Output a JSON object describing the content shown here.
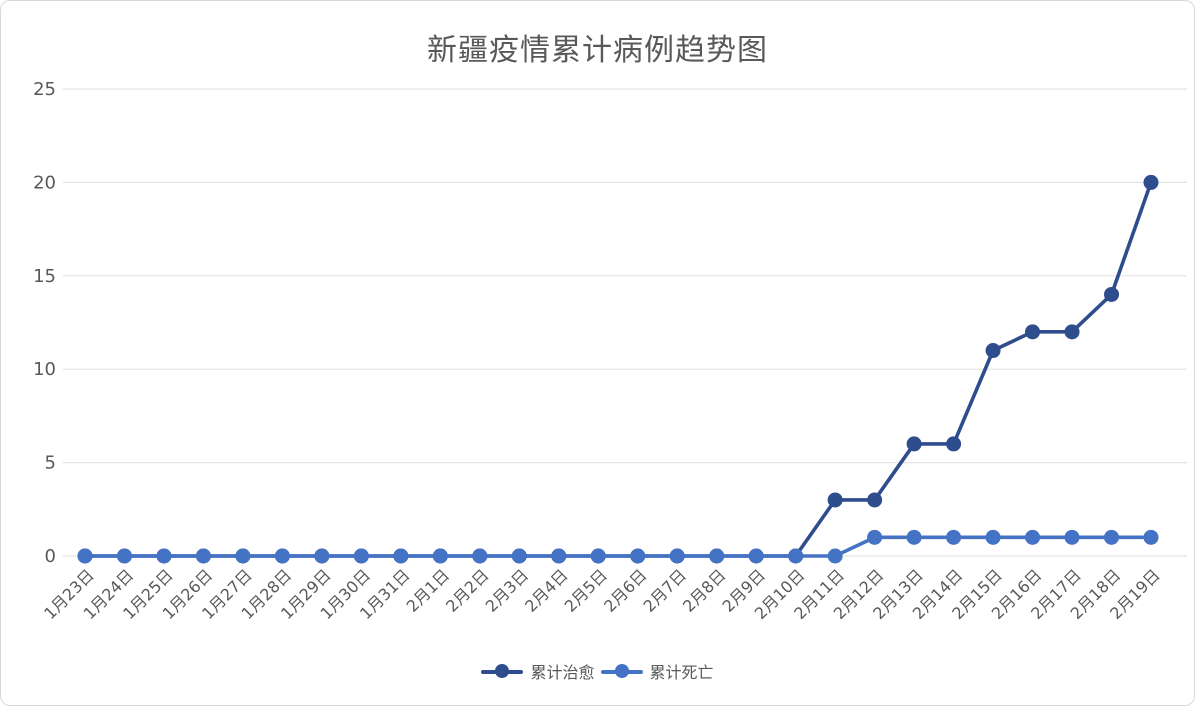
{
  "chart_data": {
    "type": "line",
    "title": "新疆疫情累计病例趋势图",
    "xlabel": "",
    "ylabel": "",
    "categories": [
      "1月23日",
      "1月24日",
      "1月25日",
      "1月26日",
      "1月27日",
      "1月28日",
      "1月29日",
      "1月30日",
      "1月31日",
      "2月1日",
      "2月2日",
      "2月3日",
      "2月4日",
      "2月5日",
      "2月6日",
      "2月7日",
      "2月8日",
      "2月9日",
      "2月10日",
      "2月11日",
      "2月12日",
      "2月13日",
      "2月14日",
      "2月15日",
      "2月16日",
      "2月17日",
      "2月18日",
      "2月19日"
    ],
    "series": [
      {
        "name": "累计治愈",
        "color": "#2E4D8C",
        "values": [
          0,
          0,
          0,
          0,
          0,
          0,
          0,
          0,
          0,
          0,
          0,
          0,
          0,
          0,
          0,
          0,
          0,
          0,
          0,
          3,
          3,
          6,
          6,
          11,
          12,
          12,
          14,
          20
        ]
      },
      {
        "name": "累计死亡",
        "color": "#4472C4",
        "values": [
          0,
          0,
          0,
          0,
          0,
          0,
          0,
          0,
          0,
          0,
          0,
          0,
          0,
          0,
          0,
          0,
          0,
          0,
          0,
          0,
          1,
          1,
          1,
          1,
          1,
          1,
          1,
          1
        ]
      }
    ],
    "ylim": [
      0,
      25
    ],
    "y_ticks": [
      0,
      5,
      10,
      15,
      20,
      25
    ],
    "grid": true,
    "legend_position": "bottom",
    "x_label_rotation": 45,
    "colors": {
      "grid_line": "#e4e4e4",
      "axis_text": "#595959",
      "title_text": "#595959",
      "card_border": "#d8d8d8",
      "background": "#ffffff"
    }
  }
}
